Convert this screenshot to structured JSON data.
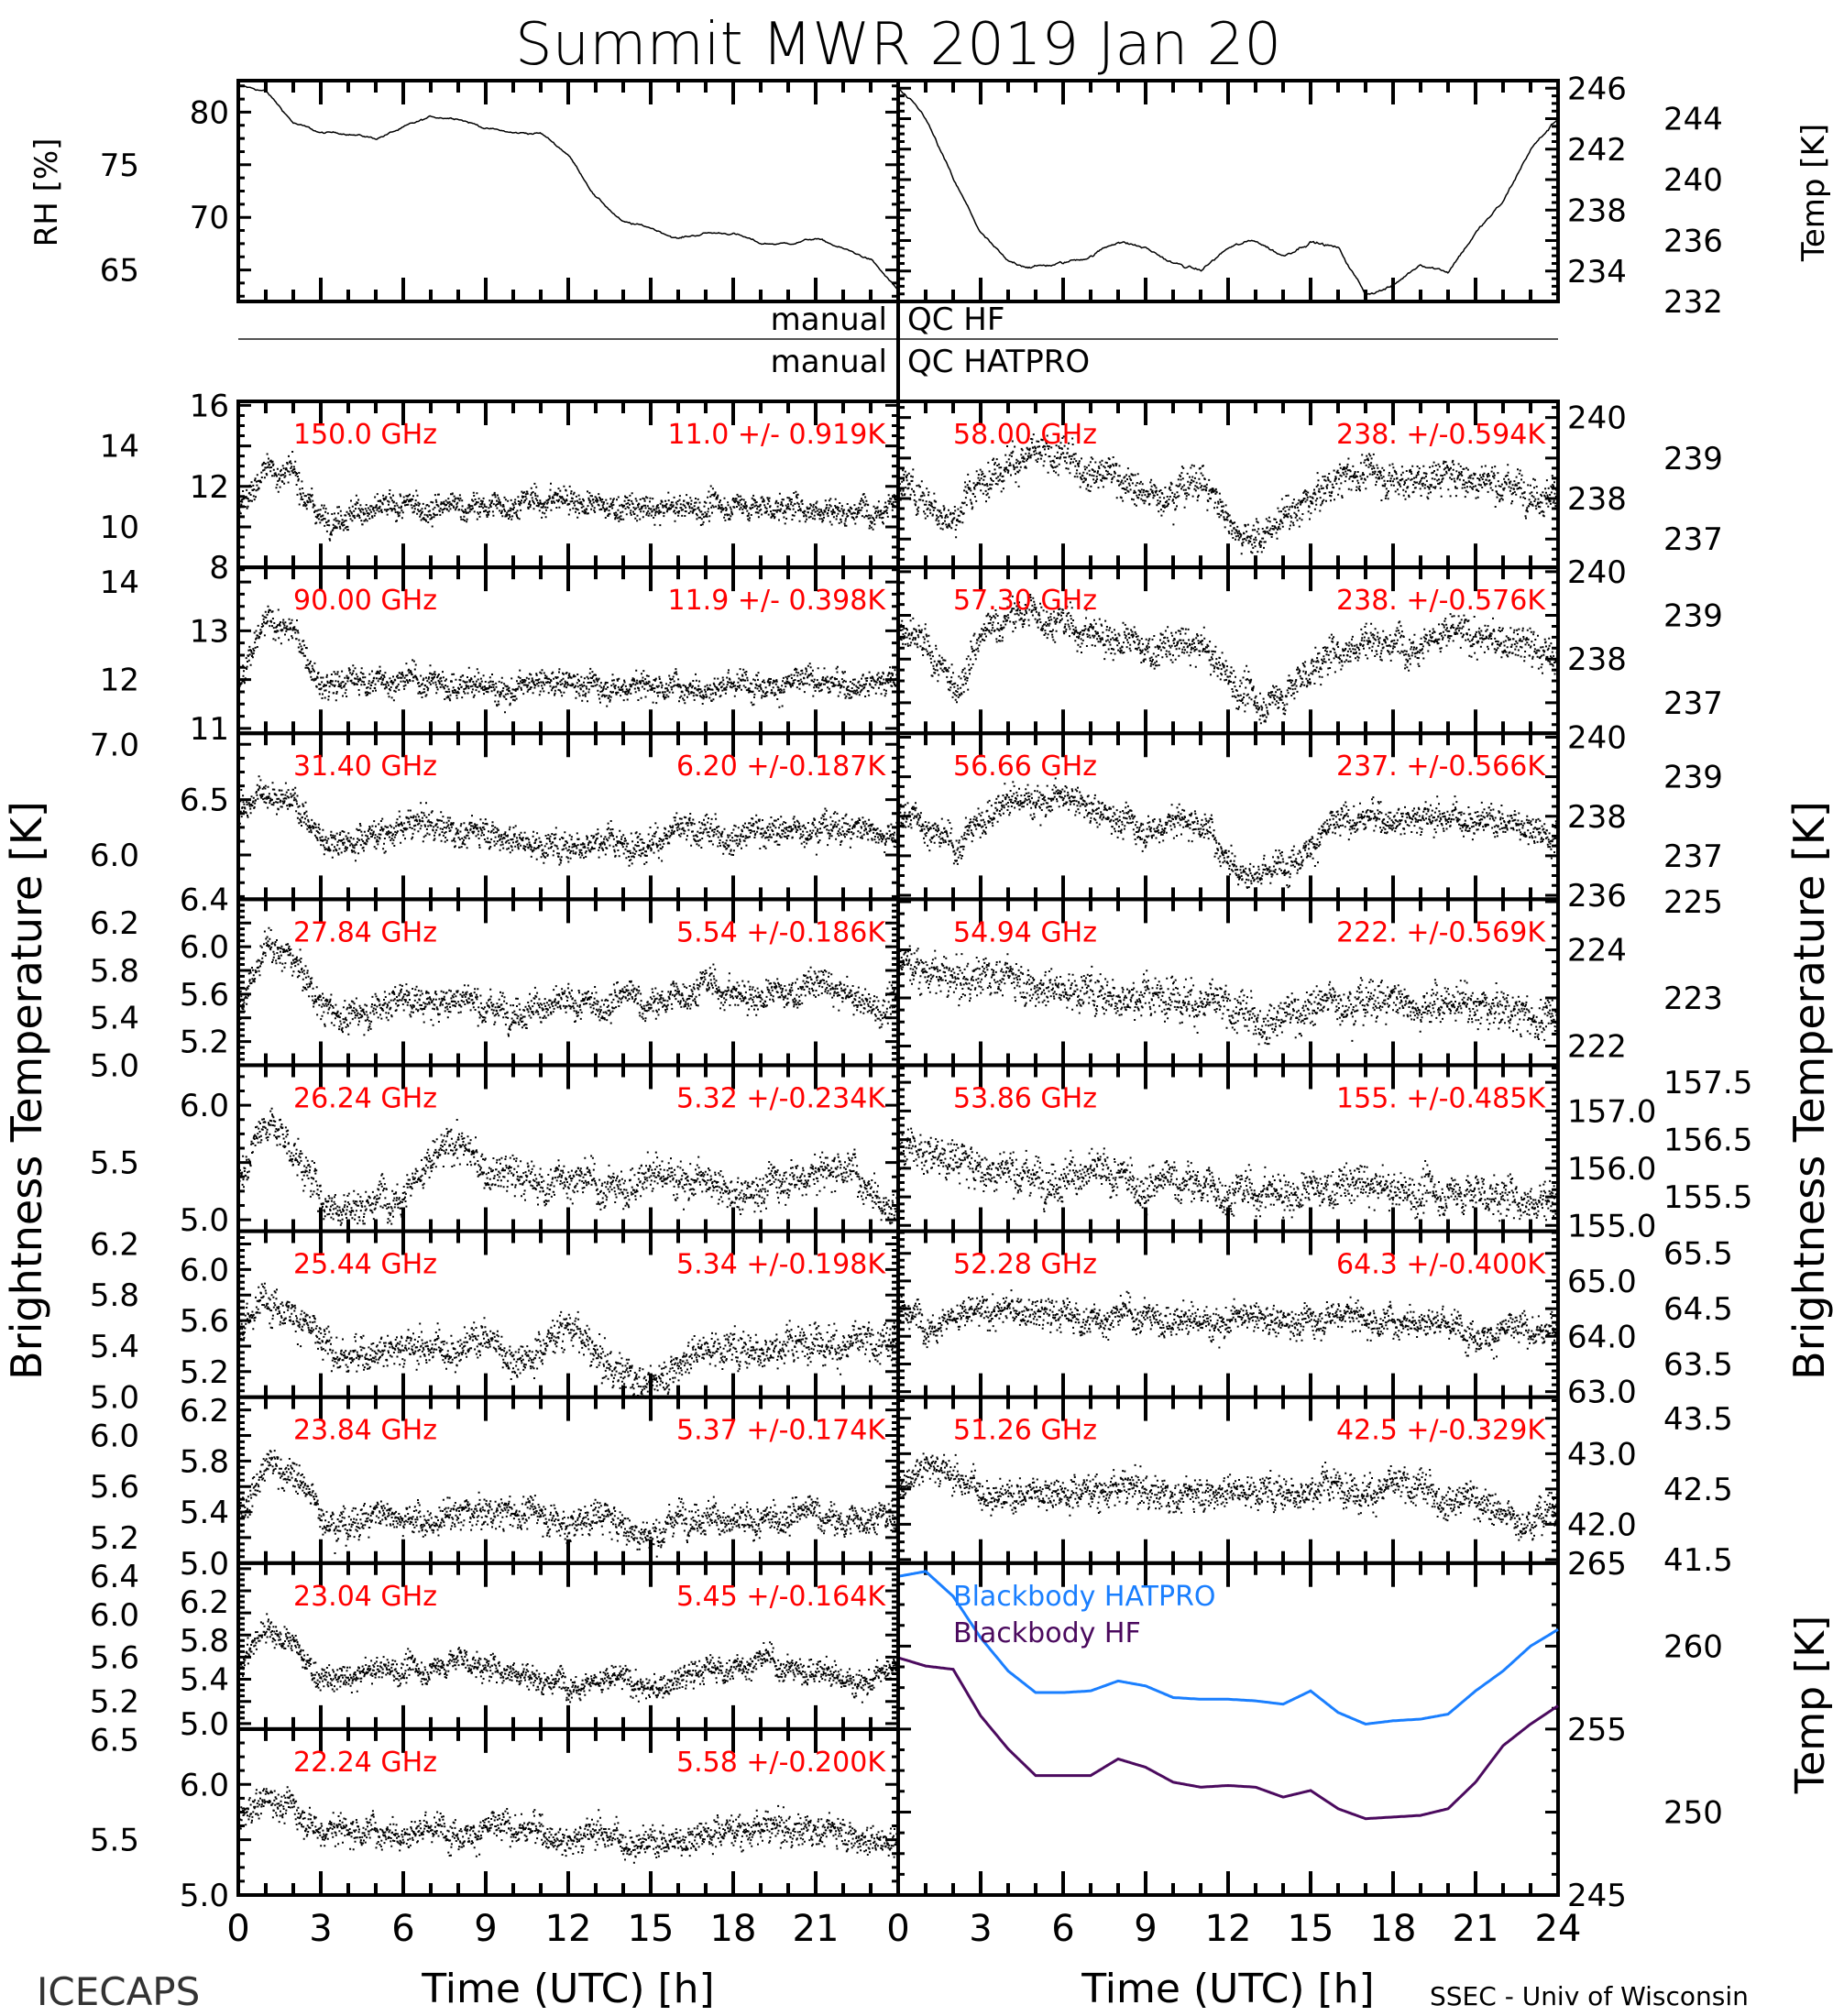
{
  "chart_data": {
    "type": "scatter",
    "title": "Summit MWR 2019 Jan 20",
    "x_label": "Time (UTC) [h]",
    "x_ticks": [
      "0",
      "3",
      "6",
      "9",
      "12",
      "15",
      "18",
      "21"
    ],
    "x_ticks_right": [
      "0",
      "3",
      "6",
      "9",
      "12",
      "15",
      "18",
      "21",
      "24"
    ],
    "xlim": [
      0,
      24
    ],
    "footer_left": "ICECAPS",
    "footer_right": "SSEC - Univ of Wisconsin",
    "left_ylabel": "Brightness Temperature [K]",
    "right_ylabel": "Brightness Temperature [K]",
    "qc": {
      "manual_hf": "manual",
      "qc_hf": "QC HF",
      "manual_hatpro": "manual",
      "qc_hatpro": "QC HATPRO"
    },
    "top_panel": {
      "left": {
        "ylabel": "RH [%]",
        "ticks": [
          "65",
          "70",
          "75",
          "80"
        ],
        "ylim": [
          62,
          83
        ],
        "values": [
          82.5,
          82,
          79,
          78,
          78,
          77.5,
          78.5,
          79.5,
          79.5,
          78.5,
          78,
          78,
          76,
          72,
          69.5,
          69,
          68,
          68.5,
          68.5,
          67.5,
          67.5,
          68,
          67,
          66,
          63
        ]
      },
      "right": {
        "ylabel": "Temp [K]",
        "ticks": [
          "232",
          "234",
          "236",
          "238",
          "240",
          "242",
          "244",
          "246"
        ],
        "ylim": [
          232,
          246.5
        ],
        "values": [
          246,
          244,
          240,
          236.5,
          234.5,
          234.3,
          234.5,
          235,
          236,
          235.5,
          234.5,
          234,
          235.5,
          236,
          235,
          236,
          235.5,
          232.5,
          233,
          234.5,
          234,
          236.5,
          238.5,
          242,
          244
        ]
      }
    },
    "left_panels": [
      {
        "freq": "150.0 GHz",
        "stat": "11.0 +/- 0.919K",
        "sigma": 0.919,
        "ticks": [
          "8",
          "10",
          "12",
          "14",
          "16"
        ],
        "tick_values": [
          8,
          10,
          12,
          14,
          16
        ],
        "ylim": [
          8,
          16.2
        ],
        "values": [
          11,
          13,
          12.5,
          10.5,
          10.8,
          10.8,
          11,
          11,
          11,
          11,
          11.2,
          11.3,
          11.5,
          11,
          11,
          10.8,
          11,
          11,
          11.2,
          11,
          11,
          11,
          10.8,
          11,
          11.5
        ]
      },
      {
        "freq": "90.00 GHz",
        "stat": "11.9 +/- 0.398K",
        "sigma": 0.398,
        "ticks": [
          "11",
          "12",
          "13",
          "14"
        ],
        "tick_values": [
          11,
          12,
          13,
          14
        ],
        "ylim": [
          10.9,
          14.3
        ],
        "values": [
          12,
          13.2,
          13,
          11.8,
          12,
          12,
          12,
          12,
          11.9,
          11.9,
          11.8,
          11.9,
          12,
          11.9,
          11.9,
          11.9,
          11.9,
          11.9,
          11.9,
          12,
          11.9,
          12,
          11.9,
          12,
          12
        ]
      },
      {
        "freq": "31.40 GHz",
        "stat": "6.20 +/-0.187K",
        "sigma": 0.187,
        "ticks": [
          "6.0",
          "6.5",
          "7.0"
        ],
        "tick_values": [
          6.0,
          6.5,
          7.0
        ],
        "ylim": [
          5.6,
          7.1
        ],
        "values": [
          6.4,
          6.6,
          6.5,
          6.15,
          6.15,
          6.2,
          6.25,
          6.3,
          6.2,
          6.25,
          6.15,
          6.1,
          6.1,
          6.15,
          6.1,
          6.15,
          6.2,
          6.2,
          6.2,
          6.25,
          6.2,
          6.3,
          6.25,
          6.25,
          6.2
        ]
      },
      {
        "freq": "27.84 GHz",
        "stat": "5.54 +/-0.186K",
        "sigma": 0.186,
        "ticks": [
          "5.0",
          "5.2",
          "5.4",
          "5.6",
          "5.8",
          "6.0",
          "6.2",
          "6.4"
        ],
        "tick_values": [
          5.0,
          5.2,
          5.4,
          5.6,
          5.8,
          6.0,
          6.2,
          6.4
        ],
        "ylim": [
          5.0,
          6.4
        ],
        "values": [
          5.5,
          6.0,
          5.9,
          5.5,
          5.4,
          5.5,
          5.6,
          5.5,
          5.6,
          5.5,
          5.5,
          5.5,
          5.5,
          5.5,
          5.6,
          5.5,
          5.6,
          5.7,
          5.6,
          5.6,
          5.6,
          5.7,
          5.6,
          5.5,
          5.5
        ]
      },
      {
        "freq": "26.24 GHz",
        "stat": "5.32 +/-0.234K",
        "sigma": 0.234,
        "ticks": [
          "5.0",
          "5.5",
          "6.0"
        ],
        "tick_values": [
          5.0,
          5.5,
          6.0
        ],
        "ylim": [
          4.9,
          6.35
        ],
        "values": [
          5.4,
          5.9,
          5.6,
          5.2,
          5.1,
          5.2,
          5.3,
          5.5,
          5.7,
          5.4,
          5.4,
          5.3,
          5.4,
          5.3,
          5.3,
          5.4,
          5.4,
          5.3,
          5.2,
          5.3,
          5.4,
          5.4,
          5.5,
          5.3,
          5.1
        ]
      },
      {
        "freq": "25.44 GHz",
        "stat": "5.34 +/-0.198K",
        "sigma": 0.198,
        "ticks": [
          "5.0",
          "5.2",
          "5.4",
          "5.6",
          "5.8",
          "6.0",
          "6.2"
        ],
        "tick_values": [
          5.0,
          5.2,
          5.4,
          5.6,
          5.8,
          6.0,
          6.2
        ],
        "ylim": [
          5.0,
          6.3
        ],
        "values": [
          5.5,
          5.8,
          5.7,
          5.4,
          5.3,
          5.4,
          5.4,
          5.4,
          5.4,
          5.5,
          5.3,
          5.4,
          5.6,
          5.3,
          5.2,
          5.1,
          5.3,
          5.4,
          5.4,
          5.4,
          5.4,
          5.5,
          5.4,
          5.4,
          5.4
        ]
      },
      {
        "freq": "23.84 GHz",
        "stat": "5.37 +/-0.174K",
        "sigma": 0.174,
        "ticks": [
          "5.0",
          "5.2",
          "5.4",
          "5.6",
          "5.8",
          "6.0",
          "6.2"
        ],
        "tick_values": [
          5.0,
          5.2,
          5.4,
          5.6,
          5.8,
          6.0,
          6.2
        ],
        "ylim": [
          5.0,
          6.3
        ],
        "values": [
          5.4,
          5.8,
          5.7,
          5.4,
          5.3,
          5.4,
          5.4,
          5.3,
          5.4,
          5.4,
          5.4,
          5.4,
          5.3,
          5.4,
          5.3,
          5.2,
          5.4,
          5.4,
          5.3,
          5.3,
          5.4,
          5.4,
          5.3,
          5.4,
          5.3
        ]
      },
      {
        "freq": "23.04 GHz",
        "stat": "5.45 +/-0.164K",
        "sigma": 0.164,
        "ticks": [
          "5.0",
          "5.2",
          "5.4",
          "5.6",
          "5.8",
          "6.0",
          "6.2",
          "6.4"
        ],
        "tick_values": [
          5.0,
          5.2,
          5.4,
          5.6,
          5.8,
          6.0,
          6.2,
          6.4
        ],
        "ylim": [
          4.95,
          6.45
        ],
        "values": [
          5.5,
          5.9,
          5.7,
          5.4,
          5.4,
          5.5,
          5.5,
          5.5,
          5.6,
          5.5,
          5.5,
          5.4,
          5.4,
          5.4,
          5.4,
          5.3,
          5.4,
          5.5,
          5.5,
          5.6,
          5.5,
          5.5,
          5.4,
          5.4,
          5.5
        ]
      },
      {
        "freq": "22.24 GHz",
        "stat": "5.58 +/-0.200K",
        "sigma": 0.2,
        "ticks": [
          "5.0",
          "5.5",
          "6.0",
          "6.5"
        ],
        "tick_values": [
          5.0,
          5.5,
          6.0,
          6.5
        ],
        "ylim": [
          5.0,
          6.5
        ],
        "values": [
          5.7,
          5.9,
          5.8,
          5.6,
          5.6,
          5.6,
          5.6,
          5.6,
          5.6,
          5.6,
          5.6,
          5.6,
          5.5,
          5.6,
          5.5,
          5.5,
          5.5,
          5.6,
          5.6,
          5.6,
          5.6,
          5.6,
          5.6,
          5.5,
          5.5
        ]
      }
    ],
    "right_panels": [
      {
        "freq": "58.00 GHz",
        "stat": "238. +/-0.594K",
        "sigma": 0.594,
        "ticks": [
          "237",
          "238",
          "239",
          "240"
        ],
        "tick_values": [
          237,
          238,
          239,
          240
        ],
        "ylim": [
          236.3,
          240.4
        ],
        "values": [
          238.5,
          238,
          237.5,
          238.5,
          239,
          239,
          239,
          238.8,
          238.6,
          238,
          238.3,
          238.5,
          237.5,
          237,
          237.5,
          238,
          238.5,
          238.7,
          238.5,
          238.5,
          238.6,
          238.5,
          238.4,
          238.3,
          238
        ]
      },
      {
        "freq": "57.30 GHz",
        "stat": "238. +/-0.576K",
        "sigma": 0.576,
        "ticks": [
          "237",
          "238",
          "239",
          "240"
        ],
        "tick_values": [
          237,
          238,
          239,
          240
        ],
        "ylim": [
          236.3,
          240.1
        ],
        "values": [
          238.6,
          238.2,
          237.3,
          238.5,
          239,
          239.1,
          238.8,
          238.6,
          238.5,
          238.2,
          238.3,
          238.3,
          237.6,
          237,
          237.2,
          237.8,
          238.2,
          238.5,
          238.4,
          238.5,
          238.6,
          238.5,
          238.4,
          238.3,
          237.9
        ]
      },
      {
        "freq": "56.66 GHz",
        "stat": "237. +/-0.566K",
        "sigma": 0.566,
        "ticks": [
          "236",
          "237",
          "238",
          "239",
          "240"
        ],
        "tick_values": [
          236,
          237,
          238,
          239,
          240
        ],
        "ylim": [
          235.9,
          240.1
        ],
        "values": [
          238.2,
          237.8,
          237.2,
          238,
          238.4,
          238.5,
          238.4,
          238.2,
          238,
          237.7,
          237.9,
          237.9,
          237,
          236.5,
          236.8,
          237.4,
          237.8,
          238,
          238,
          238,
          238,
          238,
          237.9,
          237.8,
          237.5
        ]
      },
      {
        "freq": "54.94 GHz",
        "stat": "222. +/-0.569K",
        "sigma": 0.569,
        "ticks": [
          "222",
          "223",
          "224",
          "225"
        ],
        "tick_values": [
          222,
          223,
          224,
          225
        ],
        "ylim": [
          221.6,
          225.05
        ],
        "values": [
          223.8,
          223.6,
          223.3,
          223.5,
          223.5,
          223.3,
          223.2,
          223.2,
          223.1,
          223,
          223.2,
          222.9,
          222.7,
          222.6,
          222.7,
          222.8,
          223,
          223,
          223,
          222.9,
          222.9,
          222.8,
          222.8,
          222.6,
          222.5
        ]
      },
      {
        "freq": "53.86 GHz",
        "stat": "155. +/-0.485K",
        "sigma": 0.485,
        "ticks": [
          "155.0",
          "155.5",
          "156.0",
          "156.5",
          "157.0",
          "157.5"
        ],
        "tick_values": [
          155.0,
          155.5,
          156.0,
          156.5,
          157.0,
          157.5
        ],
        "ylim": [
          154.9,
          157.8
        ],
        "values": [
          156.5,
          156.3,
          156.2,
          156,
          156,
          155.9,
          155.9,
          155.9,
          155.8,
          155.7,
          155.8,
          155.7,
          155.6,
          155.6,
          155.6,
          155.6,
          155.7,
          155.7,
          155.6,
          155.6,
          155.6,
          155.6,
          155.5,
          155.5,
          155.5
        ]
      },
      {
        "freq": "52.28 GHz",
        "stat": "64.3 +/-0.400K",
        "sigma": 0.4,
        "ticks": [
          "63.0",
          "63.5",
          "64.0",
          "64.5",
          "65.0",
          "65.5"
        ],
        "tick_values": [
          63.0,
          63.5,
          64.0,
          64.5,
          65.0,
          65.5
        ],
        "ylim": [
          62.9,
          65.9
        ],
        "values": [
          64.5,
          64.3,
          64.4,
          64.4,
          64.5,
          64.4,
          64.4,
          64.3,
          64.4,
          64.4,
          64.3,
          64.3,
          64.3,
          64.3,
          64.3,
          64.3,
          64.5,
          64.3,
          64.3,
          64.4,
          64.2,
          64.1,
          64.1,
          64.1,
          64.1
        ]
      },
      {
        "freq": "51.26 GHz",
        "stat": "42.5 +/-0.329K",
        "sigma": 0.329,
        "ticks": [
          "41.5",
          "42.0",
          "42.5",
          "43.0",
          "43.5"
        ],
        "tick_values": [
          41.5,
          42.0,
          42.5,
          43.0,
          43.5
        ],
        "ylim": [
          41.45,
          43.8
        ],
        "values": [
          42.6,
          42.9,
          42.7,
          42.5,
          42.4,
          42.5,
          42.5,
          42.5,
          42.5,
          42.5,
          42.4,
          42.5,
          42.5,
          42.5,
          42.5,
          42.5,
          42.6,
          42.5,
          42.5,
          42.5,
          42.4,
          42.4,
          42.1,
          42.1,
          42.3
        ]
      }
    ],
    "blackbody_panel": {
      "ylabel": "Temp [K]",
      "ticks": [
        "245",
        "250",
        "255",
        "260",
        "265"
      ],
      "tick_values": [
        245,
        250,
        255,
        260,
        265
      ],
      "ylim": [
        245,
        265
      ],
      "series": [
        {
          "name": "Blackbody HATPRO",
          "color": "#1a7fff",
          "values": [
            264.2,
            264.5,
            263,
            260.5,
            258.5,
            257.2,
            257.2,
            257.3,
            257.9,
            257.6,
            256.9,
            256.8,
            256.8,
            256.7,
            256.5,
            257.3,
            256,
            255.3,
            255.5,
            255.6,
            255.9,
            257.3,
            258.5,
            260,
            261
          ]
        },
        {
          "name": "Blackbody HF",
          "color": "#4b0a5e",
          "values": [
            259.3,
            258.8,
            258.6,
            255.8,
            253.8,
            252.2,
            252.2,
            252.2,
            253.2,
            252.7,
            251.8,
            251.5,
            251.6,
            251.5,
            250.9,
            251.3,
            250.2,
            249.6,
            249.7,
            249.8,
            250.2,
            251.8,
            254,
            255.3,
            256.4
          ]
        }
      ]
    },
    "colors": {
      "channel_label": "#ff0000",
      "points": "#000000"
    }
  }
}
